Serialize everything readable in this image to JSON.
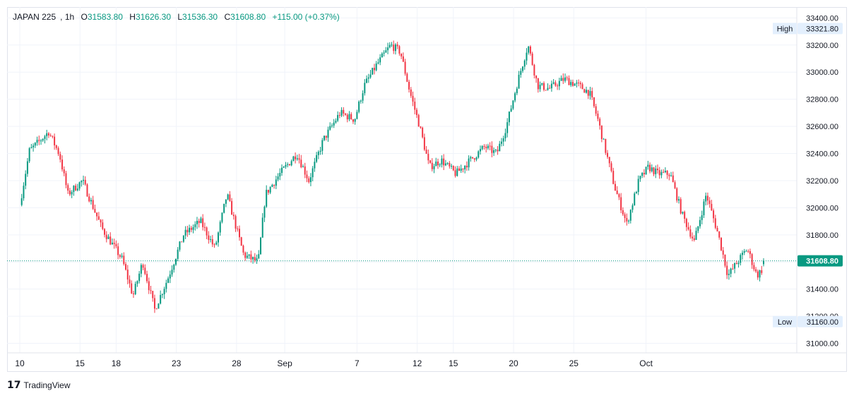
{
  "header": {
    "symbol": "JAPAN 225",
    "interval": "1h",
    "open_label": "O",
    "open": "31583.80",
    "high_label": "H",
    "high": "31626.30",
    "low_label": "L",
    "low": "31536.30",
    "close_label": "C",
    "close": "31608.80",
    "change": "+115.00 (+0.37%)"
  },
  "footer": {
    "logo_glyph": "17",
    "brand": "TradingView"
  },
  "colors": {
    "up": "#089981",
    "down": "#f23645",
    "grid": "#f0f3fa",
    "axis_text": "#131722",
    "badge_bg": "#e3effd"
  },
  "chart_data": {
    "type": "candlestick",
    "x_labels": [
      {
        "label": "10",
        "at": "Aug 10"
      },
      {
        "label": "15",
        "at": "Aug 15"
      },
      {
        "label": "18",
        "at": "Aug 18"
      },
      {
        "label": "23",
        "at": "Aug 23"
      },
      {
        "label": "28",
        "at": "Aug 28"
      },
      {
        "label": "Sep",
        "at": "Sep 1"
      },
      {
        "label": "7",
        "at": "Sep 7"
      },
      {
        "label": "12",
        "at": "Sep 12"
      },
      {
        "label": "15",
        "at": "Sep 15"
      },
      {
        "label": "20",
        "at": "Sep 20"
      },
      {
        "label": "25",
        "at": "Sep 25"
      },
      {
        "label": "Oct",
        "at": "Oct 1"
      }
    ],
    "y_ticks": [
      "31000.00",
      "31200.00",
      "31400.00",
      "31600.00",
      "31800.00",
      "32000.00",
      "32200.00",
      "32400.00",
      "32600.00",
      "32800.00",
      "33000.00",
      "33200.00",
      "33400.00"
    ],
    "ylim": [
      30930,
      33480
    ],
    "high_marker": {
      "label": "High",
      "value": "33321.80"
    },
    "low_marker": {
      "label": "Low",
      "value": "31160.00"
    },
    "last_price": {
      "value": "31608.80"
    },
    "price_path": [
      {
        "t": 0,
        "v": 32020
      },
      {
        "t": 0.8,
        "v": 32420
      },
      {
        "t": 1.5,
        "v": 32480
      },
      {
        "t": 2.4,
        "v": 32560
      },
      {
        "t": 3.3,
        "v": 32390
      },
      {
        "t": 4.0,
        "v": 32100
      },
      {
        "t": 5.2,
        "v": 32200
      },
      {
        "t": 6.8,
        "v": 31850
      },
      {
        "t": 8.5,
        "v": 31620
      },
      {
        "t": 9.4,
        "v": 31350
      },
      {
        "t": 10.2,
        "v": 31600
      },
      {
        "t": 11.2,
        "v": 31250
      },
      {
        "t": 12.3,
        "v": 31480
      },
      {
        "t": 13.6,
        "v": 31800
      },
      {
        "t": 15.0,
        "v": 31900
      },
      {
        "t": 16.2,
        "v": 31700
      },
      {
        "t": 17.2,
        "v": 32100
      },
      {
        "t": 18.6,
        "v": 31650
      },
      {
        "t": 19.8,
        "v": 31600
      },
      {
        "t": 20.4,
        "v": 32100
      },
      {
        "t": 21.6,
        "v": 32250
      },
      {
        "t": 23.0,
        "v": 32400
      },
      {
        "t": 24.0,
        "v": 32200
      },
      {
        "t": 25.2,
        "v": 32500
      },
      {
        "t": 26.6,
        "v": 32700
      },
      {
        "t": 27.8,
        "v": 32650
      },
      {
        "t": 28.6,
        "v": 32900
      },
      {
        "t": 29.6,
        "v": 33050
      },
      {
        "t": 30.8,
        "v": 33200
      },
      {
        "t": 31.6,
        "v": 33150
      },
      {
        "t": 32.4,
        "v": 32850
      },
      {
        "t": 33.2,
        "v": 32600
      },
      {
        "t": 34.0,
        "v": 32300
      },
      {
        "t": 35.0,
        "v": 32350
      },
      {
        "t": 36.2,
        "v": 32250
      },
      {
        "t": 37.4,
        "v": 32350
      },
      {
        "t": 38.6,
        "v": 32450
      },
      {
        "t": 39.6,
        "v": 32400
      },
      {
        "t": 40.4,
        "v": 32600
      },
      {
        "t": 41.4,
        "v": 32950
      },
      {
        "t": 42.2,
        "v": 33200
      },
      {
        "t": 43.0,
        "v": 32900
      },
      {
        "t": 44.0,
        "v": 32880
      },
      {
        "t": 45.2,
        "v": 32950
      },
      {
        "t": 46.4,
        "v": 32900
      },
      {
        "t": 47.3,
        "v": 32850
      },
      {
        "t": 48.0,
        "v": 32650
      },
      {
        "t": 49.4,
        "v": 32150
      },
      {
        "t": 50.4,
        "v": 31880
      },
      {
        "t": 51.4,
        "v": 32200
      },
      {
        "t": 52.2,
        "v": 32300
      },
      {
        "t": 53.0,
        "v": 32250
      },
      {
        "t": 54.0,
        "v": 32250
      },
      {
        "t": 55.0,
        "v": 31950
      },
      {
        "t": 56.0,
        "v": 31750
      },
      {
        "t": 57.0,
        "v": 32100
      },
      {
        "t": 58.0,
        "v": 31800
      },
      {
        "t": 58.8,
        "v": 31500
      },
      {
        "t": 59.6,
        "v": 31600
      },
      {
        "t": 60.4,
        "v": 31700
      },
      {
        "t": 61.2,
        "v": 31500
      },
      {
        "t": 61.9,
        "v": 31570
      }
    ]
  }
}
